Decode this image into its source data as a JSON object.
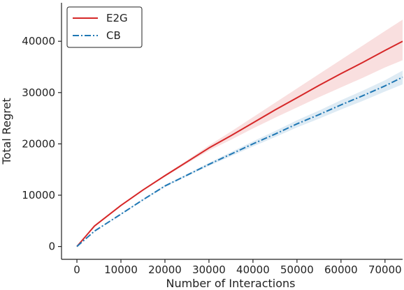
{
  "chart_data": {
    "type": "line",
    "title": "",
    "xlabel": "Number of Interactions",
    "ylabel": "Total Regret",
    "xlim": [
      -3500,
      74000
    ],
    "ylim": [
      -2500,
      47500
    ],
    "xticks": [
      0,
      10000,
      20000,
      30000,
      40000,
      50000,
      60000,
      70000
    ],
    "yticks": [
      0,
      10000,
      20000,
      30000,
      40000
    ],
    "grid": false,
    "legend_position": "top-left",
    "series": [
      {
        "name": "E2G",
        "color": "#d62728",
        "line_style": "solid",
        "x": [
          0,
          4000,
          10000,
          15000,
          20000,
          25000,
          30000,
          35000,
          40000,
          45000,
          50000,
          55000,
          60000,
          65000,
          70000,
          74000
        ],
        "y": [
          0,
          4000,
          8000,
          11000,
          13800,
          16500,
          19200,
          21600,
          24100,
          26600,
          29000,
          31400,
          33700,
          35900,
          38200,
          40000
        ],
        "band_lower": [
          0,
          3900,
          7850,
          10850,
          13600,
          16200,
          18700,
          20800,
          23000,
          25100,
          27100,
          29100,
          31000,
          32900,
          34900,
          36300
        ],
        "band_upper": [
          0,
          4100,
          8150,
          11150,
          14000,
          16800,
          19700,
          22400,
          25200,
          28000,
          30800,
          33600,
          36400,
          39200,
          42000,
          44200
        ]
      },
      {
        "name": "CB",
        "color": "#1f77b4",
        "line_style": "dashdot",
        "x": [
          0,
          4000,
          10000,
          15000,
          20000,
          25000,
          30000,
          35000,
          40000,
          45000,
          50000,
          55000,
          60000,
          65000,
          70000,
          74000
        ],
        "y": [
          0,
          3000,
          6300,
          9100,
          11800,
          13900,
          16000,
          18000,
          20000,
          21900,
          23900,
          25700,
          27600,
          29400,
          31300,
          33000
        ],
        "band_lower": [
          0,
          2950,
          6200,
          8950,
          11600,
          13700,
          15700,
          17600,
          19500,
          21300,
          23200,
          24900,
          26700,
          28400,
          30200,
          31600
        ],
        "band_upper": [
          0,
          3050,
          6400,
          9250,
          12000,
          14100,
          16300,
          18400,
          20500,
          22500,
          24600,
          26500,
          28500,
          30400,
          32400,
          34300
        ]
      }
    ]
  }
}
